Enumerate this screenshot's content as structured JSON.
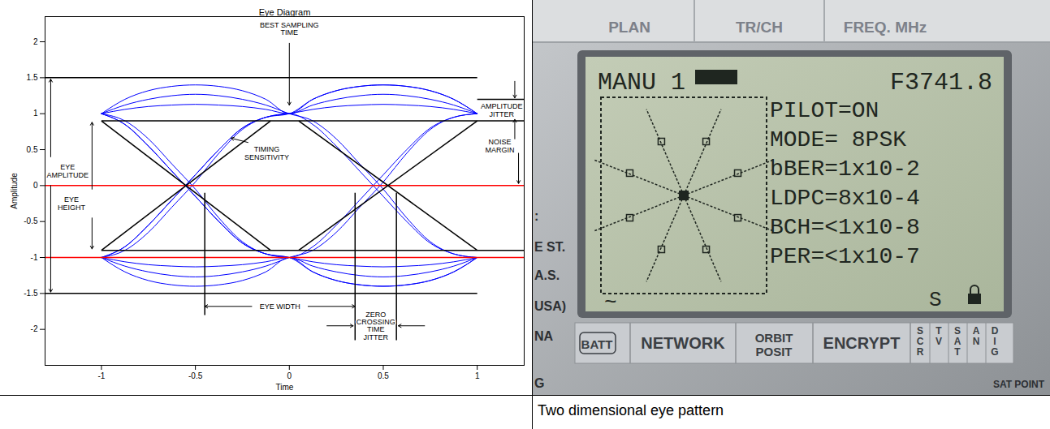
{
  "chart_data": {
    "type": "line",
    "title": "Eye Diagram",
    "x_label": "Time",
    "y_label": "Amplitude",
    "xlim": [
      -1.3,
      1.25
    ],
    "ylim": [
      -2.5,
      2.35
    ],
    "xticks": [
      -1,
      -0.5,
      0,
      0.5,
      1
    ],
    "yticks": [
      -2,
      -1.5,
      -1,
      -0.5,
      0,
      0.5,
      1,
      1.5,
      2
    ],
    "grid": false,
    "color": "#0000ff",
    "x": [
      -1,
      -0.875,
      -0.75,
      -0.625,
      -0.5,
      -0.375,
      -0.25,
      -0.125,
      0,
      0.125,
      0.25,
      0.375,
      0.5,
      0.625,
      0.75,
      0.875,
      1
    ],
    "series": [
      {
        "values": [
          1,
          1.2,
          1.32,
          1.38,
          1.4,
          1.38,
          1.32,
          1.2,
          1,
          1.2,
          1.32,
          1.38,
          1.4,
          1.38,
          1.32,
          1.2,
          1
        ]
      },
      {
        "values": [
          1,
          1.06,
          1.1,
          1.12,
          1.13,
          1.12,
          1.1,
          1.06,
          1,
          1.12,
          1.2,
          1.25,
          1.27,
          1.25,
          1.2,
          1.12,
          1
        ]
      },
      {
        "values": [
          -1,
          -1.2,
          -1.32,
          -1.38,
          -1.4,
          -1.38,
          -1.32,
          -1.2,
          -1,
          -1.2,
          -1.32,
          -1.38,
          -1.4,
          -1.38,
          -1.32,
          -1.2,
          -1
        ]
      },
      {
        "values": [
          -1,
          -1.06,
          -1.1,
          -1.12,
          -1.13,
          -1.12,
          -1.1,
          -1.06,
          -1,
          -1.12,
          -1.2,
          -1.25,
          -1.27,
          -1.25,
          -1.2,
          -1.12,
          -1
        ]
      },
      {
        "values": [
          1,
          0.85,
          0.55,
          0.2,
          -0.15,
          -0.5,
          -0.8,
          -0.95,
          -1,
          -0.85,
          -0.55,
          -0.2,
          0.15,
          0.5,
          0.8,
          0.95,
          1
        ]
      },
      {
        "values": [
          -1,
          -0.85,
          -0.55,
          -0.2,
          0.15,
          0.5,
          0.8,
          0.95,
          1,
          0.85,
          0.55,
          0.2,
          -0.15,
          -0.5,
          -0.8,
          -0.95,
          -1
        ]
      },
      {
        "values": [
          1,
          0.9,
          0.65,
          0.3,
          -0.05,
          -0.45,
          -0.78,
          -0.95,
          -1,
          -1.2,
          -1.32,
          -1.38,
          -1.4,
          -1.38,
          -1.32,
          -1.2,
          -1
        ]
      },
      {
        "values": [
          -1,
          -0.9,
          -0.65,
          -0.3,
          0.05,
          0.45,
          0.78,
          0.95,
          1,
          1.2,
          1.32,
          1.38,
          1.4,
          1.38,
          1.32,
          1.2,
          1
        ]
      },
      {
        "values": [
          1,
          1.12,
          1.2,
          1.25,
          1.27,
          1.25,
          1.2,
          1.12,
          1,
          0.9,
          0.65,
          0.3,
          -0.05,
          -0.45,
          -0.78,
          -0.95,
          -1
        ]
      },
      {
        "values": [
          -1,
          -1.12,
          -1.2,
          -1.25,
          -1.27,
          -1.25,
          -1.2,
          -1.12,
          -1,
          -0.9,
          -0.65,
          -0.3,
          0.05,
          0.45,
          0.78,
          0.95,
          1
        ]
      },
      {
        "values": [
          1,
          0.85,
          0.55,
          0.2,
          -0.15,
          -0.5,
          -0.8,
          -0.95,
          -1,
          -1.06,
          -1.1,
          -1.12,
          -1.13,
          -1.12,
          -1.1,
          -1.06,
          -1
        ]
      },
      {
        "values": [
          -1,
          -0.85,
          -0.55,
          -0.2,
          0.15,
          0.5,
          0.8,
          0.95,
          1,
          1.06,
          1.1,
          1.12,
          1.13,
          1.12,
          1.1,
          1.06,
          1
        ]
      }
    ],
    "reference_lines": [
      {
        "x1": -1.3,
        "y1": 0,
        "x2": 1.25,
        "y2": 0,
        "color": "#ff0000"
      },
      {
        "x1": -1.3,
        "y1": -1,
        "x2": 1.25,
        "y2": -1,
        "color": "#ff0000"
      },
      {
        "x1": -1.3,
        "y1": 1.5,
        "x2": 1,
        "y2": 1.5,
        "color": "#000000"
      },
      {
        "x1": -1.3,
        "y1": -1.5,
        "x2": 1,
        "y2": -1.5,
        "color": "#000000"
      },
      {
        "x1": -1,
        "y1": 0.9,
        "x2": 1.25,
        "y2": 0.9,
        "color": "#000000"
      },
      {
        "x1": -1,
        "y1": -0.9,
        "x2": 1.25,
        "y2": -0.9,
        "color": "#000000"
      },
      {
        "x1": 1,
        "y1": 1.2,
        "x2": 1.25,
        "y2": 1.2,
        "color": "#000000"
      },
      {
        "x1": -1,
        "y1": 0.9,
        "x2": -0.1,
        "y2": -0.9,
        "color": "#000000"
      },
      {
        "x1": -1,
        "y1": -0.9,
        "x2": -0.1,
        "y2": 0.9,
        "color": "#000000"
      },
      {
        "x1": 0.05,
        "y1": 0.9,
        "x2": 1,
        "y2": -0.9,
        "color": "#000000"
      },
      {
        "x1": 0.05,
        "y1": -0.9,
        "x2": 1,
        "y2": 0.9,
        "color": "#000000"
      },
      {
        "x1": -0.45,
        "y1": -0.1,
        "x2": -0.45,
        "y2": -1.8,
        "color": "#000000"
      },
      {
        "x1": 0.35,
        "y1": -0.1,
        "x2": 0.35,
        "y2": -2.15,
        "color": "#000000"
      },
      {
        "x1": 0.57,
        "y1": -0.1,
        "x2": 0.57,
        "y2": -2.15,
        "color": "#000000"
      }
    ],
    "annotation_arrows": [
      {
        "x1": 0,
        "y1": 1.98,
        "x2": 0,
        "y2": 1.12
      },
      {
        "x1": 1.2,
        "y1": 1.45,
        "x2": 1.2,
        "y2": 1.22
      },
      {
        "x1": 1.2,
        "y1": 0.65,
        "x2": 1.2,
        "y2": 0.92
      },
      {
        "x1": 1.22,
        "y1": 0.45,
        "x2": 1.22,
        "y2": 0.03
      },
      {
        "x1": -1.27,
        "y1": 0.4,
        "x2": -1.27,
        "y2": 1.48
      },
      {
        "x1": -1.27,
        "y1": 0,
        "x2": -1.27,
        "y2": -1.48
      },
      {
        "x1": -1.05,
        "y1": -0.05,
        "x2": -1.05,
        "y2": 0.88
      },
      {
        "x1": -1.05,
        "y1": -0.45,
        "x2": -1.05,
        "y2": -0.88
      },
      {
        "x1": -0.22,
        "y1": 0.6,
        "x2": -0.31,
        "y2": 0.66
      },
      {
        "x1": -0.2,
        "y1": -1.68,
        "x2": -0.45,
        "y2": -1.68
      },
      {
        "x1": 0.1,
        "y1": -1.68,
        "x2": 0.35,
        "y2": -1.68
      },
      {
        "x1": 0.2,
        "y1": -1.95,
        "x2": 0.34,
        "y2": -1.95
      },
      {
        "x1": 0.72,
        "y1": -1.95,
        "x2": 0.58,
        "y2": -1.95
      }
    ],
    "annotations": [
      {
        "text": [
          "BEST SAMPLING",
          "TIME"
        ],
        "x": 0,
        "y": 2.18
      },
      {
        "text": [
          "AMPLITUDE",
          "JITTER"
        ],
        "x": 1.13,
        "y": 1.05
      },
      {
        "text": [
          "NOISE",
          "MARGIN"
        ],
        "x": 1.12,
        "y": 0.55
      },
      {
        "text": [
          "EYE",
          "AMPLITUDE"
        ],
        "x": -1.18,
        "y": 0.2
      },
      {
        "text": [
          "EYE",
          "HEIGHT"
        ],
        "x": -1.16,
        "y": -0.25
      },
      {
        "text": [
          "TIMING",
          "SENSITIVITY"
        ],
        "x": -0.12,
        "y": 0.45
      },
      {
        "text": [
          "EYE WIDTH"
        ],
        "x": -0.05,
        "y": -1.68
      },
      {
        "text": [
          "ZERO",
          "CROSSING",
          "TIME",
          "JITTER"
        ],
        "x": 0.46,
        "y": -1.95
      }
    ]
  },
  "photo": {
    "top_buttons": [
      "PLAN",
      "TR/CH",
      "FREQ. MHz"
    ],
    "screen": {
      "mode_label": "MANU 1",
      "frequency": "F3741.8",
      "lines": [
        "PILOT=ON",
        "MODE= 8PSK",
        "bBER=1x10-2",
        "LDPC=8x10-4",
        "BCH=<1x10-8",
        "PER=<1x10-7"
      ],
      "wave_symbol": "~",
      "status": "S"
    },
    "side_labels": [
      ":",
      "E ST.",
      "A.S.",
      "USA)",
      "NA",
      "G"
    ],
    "bottom_buttons": [
      [
        "BATT"
      ],
      [
        "NETWORK"
      ],
      [
        "ORBIT",
        "POSIT"
      ],
      [
        "ENCRYPT"
      ]
    ],
    "vertical_keys": [
      "SCR",
      "TV",
      "SAT",
      "AN",
      "DIG"
    ],
    "corner_text": "SAT POINT"
  },
  "table": {
    "captions": [
      null,
      "Two dimensional eye pattern"
    ]
  }
}
